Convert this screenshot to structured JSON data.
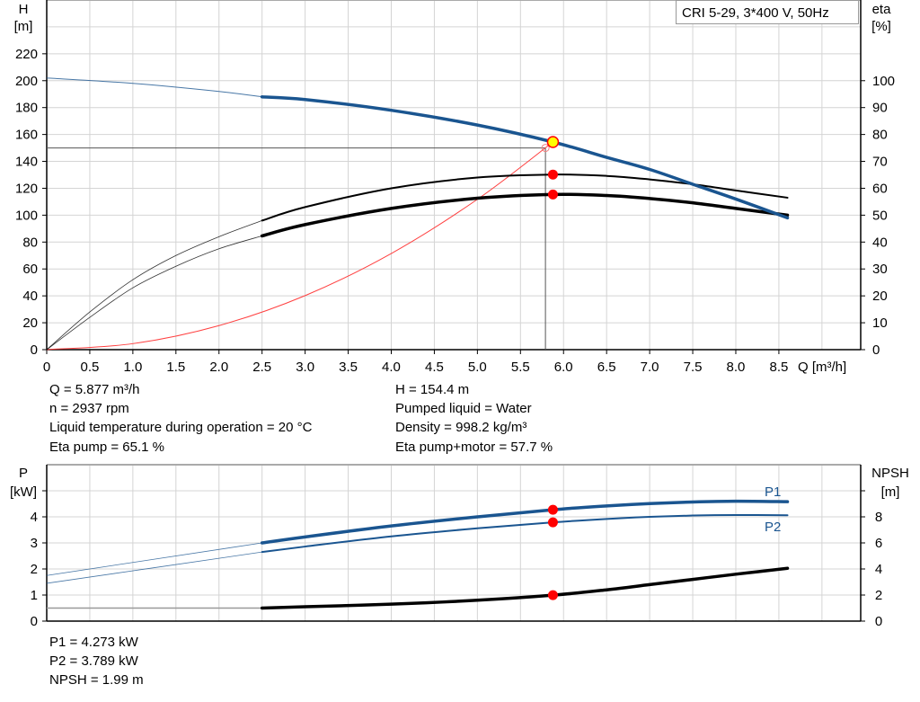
{
  "chart_data": [
    {
      "type": "line",
      "title": "CRI 5-29, 3*400 V, 50Hz",
      "xlabel": "Q [m³/h]",
      "ylabel": "H [m]",
      "ylabel_name": "H",
      "ylabel_unit": "[m]",
      "y2label_name": "eta",
      "y2label_unit": "[%]",
      "xlim": [
        0,
        9.45
      ],
      "ylim": [
        0,
        260
      ],
      "y2lim": [
        0,
        130
      ],
      "xticks": [
        "0",
        "0.5",
        "1.0",
        "1.5",
        "2.0",
        "2.5",
        "3.0",
        "3.5",
        "4.0",
        "4.5",
        "5.0",
        "5.5",
        "6.0",
        "6.5",
        "7.0",
        "7.5",
        "8.0",
        "8.5"
      ],
      "yticks": [
        0,
        20,
        40,
        60,
        80,
        100,
        120,
        140,
        160,
        180,
        200,
        220
      ],
      "y2ticks": [
        0,
        10,
        20,
        30,
        40,
        50,
        60,
        70,
        80,
        90,
        100
      ],
      "grid": true,
      "series": [
        {
          "id": "H",
          "axis": "left",
          "color": "#1a5590",
          "x": [
            0,
            1,
            2,
            2.5,
            3,
            4,
            5,
            5.877,
            6.5,
            7,
            7.5,
            8,
            8.6
          ],
          "y": [
            202,
            198,
            192,
            188,
            186,
            178,
            167,
            154.4,
            143,
            134,
            123,
            112,
            98
          ]
        },
        {
          "id": "eta-pump",
          "axis": "right",
          "color": "#000000",
          "x": [
            0,
            0.5,
            1,
            1.5,
            2,
            2.5,
            3,
            4,
            5,
            5.877,
            6.5,
            7,
            7.5,
            8,
            8.6
          ],
          "y": [
            0,
            14,
            26,
            35,
            42,
            48,
            53,
            60,
            64,
            65.1,
            64.6,
            63.3,
            61.5,
            59.2,
            56.5
          ]
        },
        {
          "id": "eta-pump-motor",
          "axis": "right",
          "color": "#000000",
          "x": [
            0,
            0.5,
            1,
            1.5,
            2,
            2.5,
            3,
            4,
            5,
            5.877,
            6.5,
            7,
            7.5,
            8,
            8.6
          ],
          "y": [
            0,
            12,
            23,
            31,
            37.5,
            42.3,
            46.5,
            52.5,
            56.3,
            57.7,
            57.3,
            56.2,
            54.6,
            52.5,
            50
          ]
        },
        {
          "id": "system",
          "axis": "left",
          "color": "#ff4040",
          "x": [
            0,
            1,
            2,
            3,
            4,
            5,
            5.877
          ],
          "y": [
            0,
            4.47,
            17.9,
            40.2,
            71.5,
            111.8,
            154.4
          ]
        }
      ],
      "operating_point": {
        "Q": 5.877,
        "H": 154.4,
        "eta_pump": 65.1,
        "eta_total": 57.7
      },
      "setpoint": {
        "Q": 5.79,
        "H": 150
      }
    },
    {
      "type": "line",
      "ylabel_name": "P",
      "ylabel_unit": "[kW]",
      "y2label_name": "NPSH",
      "y2label_unit": "[m]",
      "xlim": [
        0,
        9.45
      ],
      "ylim": [
        0,
        6
      ],
      "y2lim": [
        0,
        12
      ],
      "yticks": [
        "0",
        "1",
        "2",
        "3",
        "4",
        ""
      ],
      "y2ticks": [
        "0",
        "2",
        "4",
        "6",
        "8",
        ""
      ],
      "grid": true,
      "series": [
        {
          "name": "P1",
          "axis": "left",
          "color": "#1a5590",
          "x": [
            0,
            2.5,
            3,
            4,
            5,
            5.877,
            6.5,
            7,
            7.5,
            8,
            8.6
          ],
          "y": [
            1.75,
            3.0,
            3.23,
            3.65,
            4.0,
            4.273,
            4.42,
            4.51,
            4.57,
            4.6,
            4.58
          ]
        },
        {
          "name": "P2",
          "axis": "left",
          "color": "#1a5590",
          "x": [
            0,
            2.5,
            3,
            4,
            5,
            5.877,
            6.5,
            7,
            7.5,
            8,
            8.6
          ],
          "y": [
            1.45,
            2.65,
            2.86,
            3.25,
            3.56,
            3.789,
            3.92,
            4.0,
            4.05,
            4.07,
            4.06
          ]
        },
        {
          "id": "NPSH",
          "axis": "right",
          "color": "#000000",
          "x": [
            0,
            2.5,
            3,
            4,
            5,
            5.877,
            6.5,
            7,
            7.5,
            8,
            8.6
          ],
          "y": [
            1.0,
            1.0,
            1.1,
            1.3,
            1.6,
            1.99,
            2.4,
            2.8,
            3.2,
            3.6,
            4.05
          ]
        }
      ],
      "operating_point": {
        "P1": 4.273,
        "P2": 3.789,
        "NPSH": 1.99
      }
    }
  ],
  "info_top": {
    "q": "Q = 5.877 m³/h",
    "n": "n = 2937 rpm",
    "temp": "Liquid temperature during operation = 20 °C",
    "eta_pump": "Eta pump = 65.1 %",
    "h": "H = 154.4 m",
    "liquid": "Pumped liquid = Water",
    "density": "Density = 998.2 kg/m³",
    "eta_total": "Eta pump+motor = 57.7 %"
  },
  "info_bottom": {
    "p1": "P1 = 4.273 kW",
    "p2": "P2 = 3.789 kW",
    "npsh": "NPSH = 1.99 m"
  }
}
